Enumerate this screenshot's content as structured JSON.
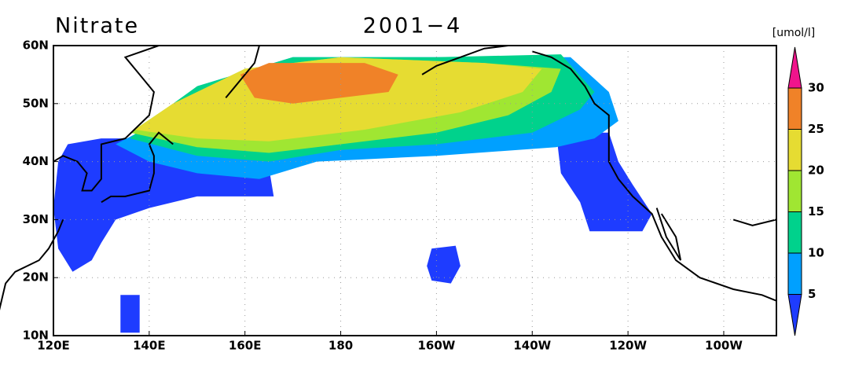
{
  "map": {
    "title": "Nitrate",
    "subtitle": "2001−4",
    "unit": "[umol/l]",
    "lonlim": [
      120,
      271
    ],
    "latlim": [
      10,
      60
    ],
    "lonticks": [
      {
        "value": 120,
        "label": "120E"
      },
      {
        "value": 140,
        "label": "140E"
      },
      {
        "value": 160,
        "label": "160E"
      },
      {
        "value": 180,
        "label": "180"
      },
      {
        "value": 200,
        "label": "160W"
      },
      {
        "value": 220,
        "label": "140W"
      },
      {
        "value": 240,
        "label": "120W"
      },
      {
        "value": 260,
        "label": "100W"
      }
    ],
    "latticks": [
      {
        "value": 10,
        "label": "10N"
      },
      {
        "value": 20,
        "label": "20N"
      },
      {
        "value": 30,
        "label": "30N"
      },
      {
        "value": 40,
        "label": "40N"
      },
      {
        "value": 50,
        "label": "50N"
      },
      {
        "value": 60,
        "label": "60N"
      }
    ],
    "levels": [
      5,
      10,
      15,
      20,
      25,
      30
    ],
    "colors": [
      "#1e3cff",
      "#00a0ff",
      "#00d28c",
      "#a0e632",
      "#e6dc32",
      "#f08228",
      "#f0148c"
    ]
  }
}
